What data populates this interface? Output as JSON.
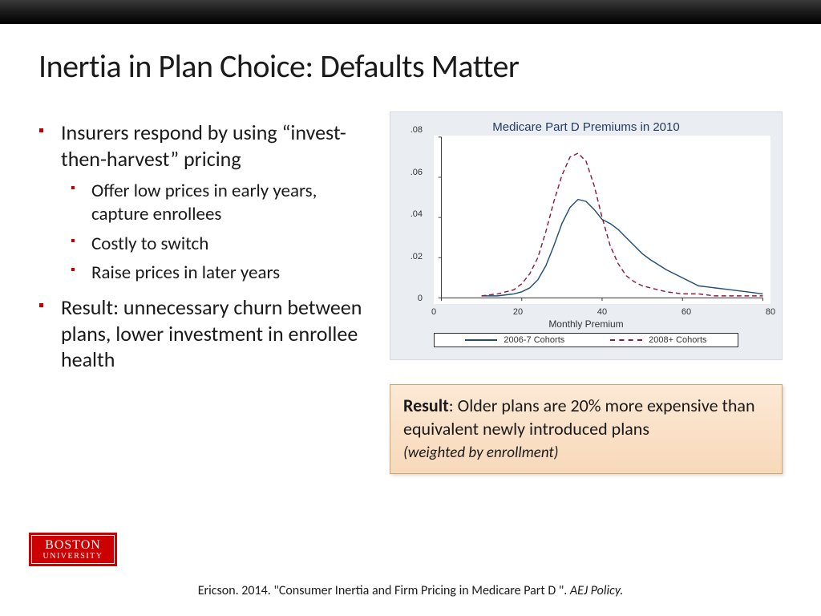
{
  "title": "Inertia in Plan Choice: Defaults Matter",
  "bullets": [
    {
      "text": "Insurers respond by using “invest-then-harvest” pricing",
      "sub": [
        "Offer low prices in early years, capture enrollees",
        "Costly to switch",
        "Raise prices in later years"
      ]
    },
    {
      "text": "Result: unnecessary churn between plans, lower investment in enrollee health",
      "sub": []
    }
  ],
  "chart": {
    "title": "Medicare Part D Premiums in 2010",
    "xlabel": "Monthly Premium",
    "xlim": [
      0,
      80
    ],
    "xticks": [
      0,
      20,
      40,
      60,
      80
    ],
    "ylim": [
      0,
      0.08
    ],
    "yticks": [
      "0",
      ".02",
      ".04",
      ".06",
      ".08"
    ],
    "ytick_values": [
      0,
      0.02,
      0.04,
      0.06,
      0.08
    ],
    "background_color": "#eaeef2",
    "plot_bg": "#ffffff",
    "border_color": "#333333",
    "series": [
      {
        "name": "2006-7 Cohorts",
        "color": "#1f4e79",
        "dash": "solid",
        "width": 1.5,
        "x": [
          10,
          14,
          18,
          20,
          22,
          24,
          26,
          28,
          30,
          32,
          34,
          36,
          38,
          40,
          42,
          44,
          46,
          48,
          50,
          52,
          56,
          60,
          64,
          68,
          72,
          76,
          80
        ],
        "y": [
          0.001,
          0.001,
          0.002,
          0.003,
          0.005,
          0.009,
          0.016,
          0.026,
          0.037,
          0.045,
          0.049,
          0.048,
          0.044,
          0.039,
          0.037,
          0.034,
          0.03,
          0.026,
          0.022,
          0.019,
          0.014,
          0.01,
          0.006,
          0.005,
          0.004,
          0.003,
          0.002
        ]
      },
      {
        "name": "2008+ Cohorts",
        "color": "#8b1a3a",
        "dash": "6,4",
        "width": 1.5,
        "x": [
          10,
          14,
          18,
          20,
          22,
          24,
          26,
          28,
          30,
          32,
          34,
          36,
          38,
          40,
          42,
          44,
          46,
          48,
          50,
          52,
          56,
          60,
          64,
          68,
          72,
          76,
          80
        ],
        "y": [
          0.001,
          0.002,
          0.004,
          0.007,
          0.012,
          0.02,
          0.033,
          0.048,
          0.061,
          0.07,
          0.072,
          0.068,
          0.056,
          0.04,
          0.026,
          0.017,
          0.011,
          0.008,
          0.006,
          0.005,
          0.003,
          0.002,
          0.002,
          0.001,
          0.001,
          0.001,
          0.001
        ]
      }
    ],
    "legend": {
      "items": [
        "2006-7 Cohorts",
        "2008+ Cohorts"
      ]
    }
  },
  "result_box": {
    "prefix": "Result",
    "body": ": Older plans are 20% more expensive than equivalent newly introduced plans",
    "note": "(weighted by enrollment)"
  },
  "logo": {
    "line1": "BOSTON",
    "line2": "UNIVERSITY"
  },
  "citation": {
    "plain": "Ericson. 2014. \"Consumer Inertia and Firm Pricing in Medicare Part D \". ",
    "italic": "AEJ Policy."
  },
  "accent_color": "#c00000"
}
